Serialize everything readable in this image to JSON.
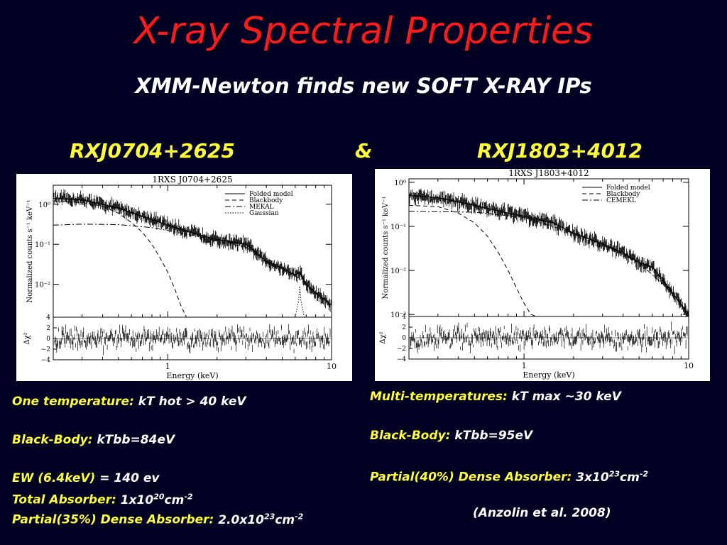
{
  "slide": {
    "title": "X-ray Spectral Properties",
    "subtitle": "XMM-Newton finds new SOFT X-RAY IPs",
    "source_left": "RXJ0704+2625",
    "ampersand": "&",
    "source_right": "RXJ1803+4012",
    "colors": {
      "background": "#000022",
      "title": "#ff1a1a",
      "highlight": "#ffff33",
      "text": "#ffffff"
    }
  },
  "left_info": {
    "l1_label": "One temperature:",
    "l1_value": "kT hot > 40 keV",
    "l2_label": "Black-Body:",
    "l2_value": "kTbb=84eV",
    "l3_label": "EW (6.4keV)",
    "l3_value": "= 140 ev",
    "l4_label": "Total Absorber:",
    "l4_value_a": "1x10",
    "l4_sup1": "20",
    "l4_value_b": "cm",
    "l4_sup2": "-2",
    "l5_label": "Partial(35%) Dense Absorber:",
    "l5_value_a": "2.0x10",
    "l5_sup1": "23",
    "l5_value_b": "cm",
    "l5_sup2": "-2"
  },
  "right_info": {
    "l1_label": "Multi-temperatures:",
    "l1_value": "kT max ~30 keV",
    "l2_label": "Black-Body:",
    "l2_value": "kTbb=95eV",
    "l3_label": "Partial(40%) Dense Absorber:",
    "l3_value_a": "3x10",
    "l3_sup1": "23",
    "l3_value_b": "cm",
    "l3_sup2": "-2",
    "citation": "(Anzolin et al. 2008)"
  },
  "chart_data": [
    {
      "type": "line",
      "title": "1RXS J0704+2625",
      "xlabel": "Energy (keV)",
      "ylabel": "Normalized counts s⁻¹ keV⁻¹",
      "xscale": "log",
      "yscale": "log",
      "xlim": [
        0.2,
        10
      ],
      "ylim": [
        0.0015,
        3
      ],
      "xticks": [
        "1",
        "10"
      ],
      "yticks": [
        "10⁰",
        "10⁻¹",
        "10⁻²"
      ],
      "legend_position": "top-right",
      "series": [
        {
          "name": "Folded model",
          "style": "solid",
          "x": [
            0.2,
            0.3,
            0.5,
            0.8,
            1,
            1.5,
            2,
            3,
            4,
            5,
            6,
            6.4,
            7,
            8,
            10
          ],
          "y": [
            1.4,
            1.3,
            0.8,
            0.42,
            0.3,
            0.18,
            0.13,
            0.1,
            0.038,
            0.025,
            0.017,
            0.02,
            0.01,
            0.006,
            0.003
          ]
        },
        {
          "name": "Blackbody",
          "style": "dashed",
          "x": [
            0.2,
            0.3,
            0.4,
            0.5,
            0.6,
            0.7,
            0.8,
            0.9,
            1.0,
            1.1,
            1.2,
            1.3
          ],
          "y": [
            1.2,
            1.1,
            0.9,
            0.6,
            0.35,
            0.2,
            0.1,
            0.045,
            0.02,
            0.008,
            0.003,
            0.0015
          ]
        },
        {
          "name": "MEKAL",
          "style": "dashdot",
          "x": [
            0.2,
            0.3,
            0.5,
            0.8,
            1,
            1.5,
            2,
            3,
            4,
            5,
            6,
            7,
            8,
            10
          ],
          "y": [
            0.3,
            0.32,
            0.31,
            0.26,
            0.22,
            0.16,
            0.12,
            0.085,
            0.035,
            0.023,
            0.016,
            0.01,
            0.006,
            0.003
          ]
        },
        {
          "name": "Gaussian",
          "style": "dotted",
          "x": [
            6.0,
            6.3,
            6.4,
            6.5,
            6.8
          ],
          "y": [
            0.0015,
            0.004,
            0.009,
            0.004,
            0.0015
          ]
        }
      ],
      "residual_panel": {
        "ylabel": "Δχ²",
        "yticks": [
          "4",
          "2",
          "0",
          "−2",
          "−4"
        ],
        "ylim": [
          -4,
          4
        ]
      }
    },
    {
      "type": "line",
      "title": "1RXS J1803+4012",
      "xlabel": "Energy (keV)",
      "ylabel": "Normalized counts s⁻¹ keV⁻¹",
      "xscale": "log",
      "yscale": "log",
      "xlim": [
        0.2,
        10
      ],
      "ylim": [
        0.0009,
        1.2
      ],
      "xticks": [
        "1",
        "10"
      ],
      "yticks": [
        "10⁰",
        "10⁻¹",
        "10⁻²",
        "10⁻³"
      ],
      "legend_position": "top-right",
      "series": [
        {
          "name": "Folded model",
          "style": "solid",
          "x": [
            0.2,
            0.3,
            0.5,
            0.8,
            1,
            1.5,
            2,
            3,
            4,
            5,
            6,
            7,
            8,
            10
          ],
          "y": [
            0.5,
            0.45,
            0.3,
            0.2,
            0.17,
            0.12,
            0.07,
            0.04,
            0.025,
            0.015,
            0.012,
            0.006,
            0.003,
            0.001
          ]
        },
        {
          "name": "Blackbody",
          "style": "dashed",
          "x": [
            0.2,
            0.3,
            0.4,
            0.5,
            0.6,
            0.7,
            0.8,
            0.9,
            1.0,
            1.1,
            1.2
          ],
          "y": [
            0.3,
            0.28,
            0.2,
            0.12,
            0.06,
            0.025,
            0.01,
            0.004,
            0.0018,
            0.001,
            0.0009
          ]
        },
        {
          "name": "CEMEKL",
          "style": "dashdot",
          "x": [
            0.2,
            0.5,
            1,
            2,
            3,
            5,
            8,
            10
          ],
          "y": [
            0.22,
            0.21,
            0.16,
            0.07,
            0.04,
            0.015,
            0.003,
            0.001
          ]
        }
      ],
      "residual_panel": {
        "ylabel": "Δχ²",
        "yticks": [
          "4",
          "2",
          "0",
          "−2",
          "−4"
        ],
        "ylim": [
          -4,
          4
        ]
      }
    }
  ]
}
